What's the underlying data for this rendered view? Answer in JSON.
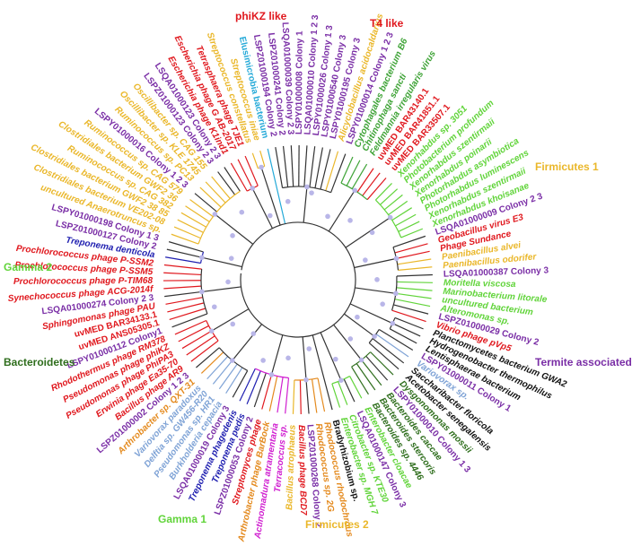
{
  "colors": {
    "black": "#111111",
    "red": "#e0181e",
    "purple": "#7a2ea6",
    "yellow": "#eab72a",
    "orange": "#e48a1e",
    "green": "#3ea336",
    "lgreen": "#61d43a",
    "blue": "#1f1fb0",
    "lblue": "#7fa3d6",
    "cyan": "#23a9d8",
    "magenta": "#d01ed0",
    "dgreen": "#2f6e1d"
  },
  "groups": [
    {
      "label": "phiKZ like",
      "color": "red"
    },
    {
      "label": "T4 like",
      "color": "red"
    },
    {
      "label": "Firmicutes 1",
      "color": "yellow"
    },
    {
      "label": "Gamma 2",
      "color": "lgreen"
    },
    {
      "label": "Bacteroidetes",
      "color": "dgreen"
    },
    {
      "label": "Termite associated",
      "color": "purple"
    },
    {
      "label": "Gamma 1",
      "color": "lgreen"
    },
    {
      "label": "Firmicutes 2",
      "color": "yellow"
    }
  ],
  "leaves": [
    {
      "text": "Treponema denticola",
      "color": "blue",
      "italic": true
    },
    {
      "text": "LSPZ01000127 Colony 2",
      "color": "purple",
      "italic": false
    },
    {
      "text": "LSPY01000198 Colony 1 3",
      "color": "purple",
      "italic": false
    },
    {
      "text": "uncultured Anaerotruncus sp.",
      "color": "yellow",
      "italic": true
    },
    {
      "text": "Clostridiales bacterium VE202-08",
      "color": "yellow",
      "italic": true
    },
    {
      "text": "Clostridiales bacterium GWF2 38 85",
      "color": "yellow",
      "italic": true
    },
    {
      "text": "Ruminococcus sp. CAG 382",
      "color": "yellow",
      "italic": true
    },
    {
      "text": "Clostridiales bacterium GWF2 36",
      "color": "yellow",
      "italic": true
    },
    {
      "text": "Ruminococcus sp. CAG 579",
      "color": "yellow",
      "italic": true
    },
    {
      "text": "LSPY01000016 Colony 1 2 3",
      "color": "purple",
      "italic": false
    },
    {
      "text": "Ruminococcus sp. PC13",
      "color": "yellow",
      "italic": true
    },
    {
      "text": "Oscillibacter sp. KLE 1745",
      "color": "yellow",
      "italic": true
    },
    {
      "text": "Oscillibacter sp. CAG 155",
      "color": "yellow",
      "italic": true
    },
    {
      "text": "LSPZ01000123 Colony 2 3",
      "color": "purple",
      "italic": false
    },
    {
      "text": "LSQA01000123 Colony 2 3",
      "color": "purple",
      "italic": false
    },
    {
      "text": "Escherichia phage K1ind1",
      "color": "red",
      "italic": true
    },
    {
      "text": "Escherichia phage G AB-2017",
      "color": "red",
      "italic": true
    },
    {
      "text": "Tetrasphaera phage TJE1",
      "color": "red",
      "italic": true
    },
    {
      "text": "Streptococcus constellatus",
      "color": "yellow",
      "italic": true
    },
    {
      "text": "Streptococcus iniae",
      "color": "yellow",
      "italic": true
    },
    {
      "text": "Elusimicrobia bacterium",
      "color": "cyan",
      "italic": false
    },
    {
      "text": "LSPZ01000194 Colony 2",
      "color": "purple",
      "italic": false
    },
    {
      "text": "LSPZ01000241 Colony 2",
      "color": "purple",
      "italic": false
    },
    {
      "text": "LSQA01000039 Colony 2 3",
      "color": "purple",
      "italic": false
    },
    {
      "text": "LSPY01000008 Colony 1",
      "color": "purple",
      "italic": false
    },
    {
      "text": "LSQA01000010 Colony 1 2 3",
      "color": "purple",
      "italic": false
    },
    {
      "text": "LSPY01000026 Colony 1 3",
      "color": "purple",
      "italic": false
    },
    {
      "text": "LSPY01000540 Colony 3",
      "color": "purple",
      "italic": false
    },
    {
      "text": "LSPY01000195 Colony 3",
      "color": "purple",
      "italic": false
    },
    {
      "text": "Alicyclobacillus acidocaldarius",
      "color": "yellow",
      "italic": true
    },
    {
      "text": "LSPY01000014 Colony 1 2 3",
      "color": "purple",
      "italic": false
    },
    {
      "text": "Cytophagales bacterium B6",
      "color": "green",
      "italic": true
    },
    {
      "text": "Chitinophaga sancti",
      "color": "green",
      "italic": true
    },
    {
      "text": "Feldmannia irregularis virus",
      "color": "green",
      "italic": true
    },
    {
      "text": "uvMED BAR43140.1",
      "color": "red",
      "italic": false
    },
    {
      "text": "uvMED BAR41851.1",
      "color": "red",
      "italic": false
    },
    {
      "text": "uvMED BAR33507.1",
      "color": "red",
      "italic": false
    },
    {
      "text": "Xenorhabdus sp. 3051",
      "color": "lgreen",
      "italic": true
    },
    {
      "text": "Photobacterium profundum",
      "color": "lgreen",
      "italic": true
    },
    {
      "text": "Xenorhabdus szentirmaii",
      "color": "lgreen",
      "italic": true
    },
    {
      "text": "Xenorhabdus poinarii",
      "color": "lgreen",
      "italic": true
    },
    {
      "text": "Photorhabdus asymbiotica",
      "color": "lgreen",
      "italic": true
    },
    {
      "text": "Photorhabdus luminescens",
      "color": "lgreen",
      "italic": true
    },
    {
      "text": "Xenorhabdus szentirmaii",
      "color": "lgreen",
      "italic": true
    },
    {
      "text": "Xenorhabdus khoisanae",
      "color": "lgreen",
      "italic": true
    },
    {
      "text": "LSQA01000009 Colony 2 3",
      "color": "purple",
      "italic": false
    },
    {
      "text": "Geobacillus virus E3",
      "color": "red",
      "italic": true
    },
    {
      "text": "Phage Sundance",
      "color": "red",
      "italic": true
    },
    {
      "text": "Paenibacillus alvei",
      "color": "yellow",
      "italic": true
    },
    {
      "text": "Paenibacillus odorifer",
      "color": "yellow",
      "italic": true
    },
    {
      "text": "LSQA01000387 Colony 3",
      "color": "purple",
      "italic": false
    },
    {
      "text": "Moritella viscosa",
      "color": "lgreen",
      "italic": true
    },
    {
      "text": "Marinobacterium litorale",
      "color": "lgreen",
      "italic": true
    },
    {
      "text": "uncultured bacterium",
      "color": "lgreen",
      "italic": true
    },
    {
      "text": "Alteromonas sp.",
      "color": "lgreen",
      "italic": true
    },
    {
      "text": "LSPZ01000029 Colony 2",
      "color": "purple",
      "italic": false
    },
    {
      "text": "Vibrio phage pVp5",
      "color": "red",
      "italic": true
    },
    {
      "text": "Planctomycetes bacterium GWA2",
      "color": "black",
      "italic": true
    },
    {
      "text": "Hydrogenobacter thermophilus",
      "color": "black",
      "italic": true
    },
    {
      "text": "Lentisphaerae bacterium",
      "color": "black",
      "italic": true
    },
    {
      "text": "LSPY01000011 Colony 1",
      "color": "purple",
      "italic": false
    },
    {
      "text": "Variovorax sp.",
      "color": "lblue",
      "italic": true
    },
    {
      "text": "Saccharibacter floricola",
      "color": "black",
      "italic": true
    },
    {
      "text": "Acetobacter senegalensis",
      "color": "black",
      "italic": true
    },
    {
      "text": "Dysgonomonas mossii",
      "color": "dgreen",
      "italic": true
    },
    {
      "text": "LSPY01000010 Colony 1 3",
      "color": "purple",
      "italic": false
    },
    {
      "text": "Bacteroides caccae",
      "color": "dgreen",
      "italic": true
    },
    {
      "text": "Bacteroides stercoris",
      "color": "dgreen",
      "italic": true
    },
    {
      "text": "Bacteroides sp. 4446",
      "color": "dgreen",
      "italic": true
    },
    {
      "text": "Enterobacter cloacae",
      "color": "lgreen",
      "italic": true
    },
    {
      "text": "LSQA01000147 Colony 3",
      "color": "purple",
      "italic": false
    },
    {
      "text": "Citrobacter sp. KTE30",
      "color": "lgreen",
      "italic": true
    },
    {
      "text": "Enterobacter sp. MGH 7",
      "color": "lgreen",
      "italic": true
    },
    {
      "text": "Bradyrhizobium sp.",
      "color": "black",
      "italic": false
    },
    {
      "text": "Rhodococcus rhodochrous",
      "color": "orange",
      "italic": true
    },
    {
      "text": "Rhodococcus sp. 2G",
      "color": "orange",
      "italic": true
    },
    {
      "text": "LSPZ01000268 Colony 2",
      "color": "purple",
      "italic": false
    },
    {
      "text": "Bacillus phage BCD7",
      "color": "red",
      "italic": true
    },
    {
      "text": "Bacillus atrophaeus",
      "color": "yellow",
      "italic": true
    },
    {
      "text": "Terracoccus sp.",
      "color": "magenta",
      "italic": true
    },
    {
      "text": "Actinomadura atramentaria",
      "color": "magenta",
      "italic": true
    },
    {
      "text": "Arthrobacter phage BarBock",
      "color": "orange",
      "italic": true
    },
    {
      "text": "Streptomyces phage",
      "color": "red",
      "italic": true
    },
    {
      "text": "LSPZ01000053 Colony 2",
      "color": "purple",
      "italic": false
    },
    {
      "text": "Treponema pedis",
      "color": "blue",
      "italic": true
    },
    {
      "text": "Treponema phagedenis",
      "color": "blue",
      "italic": true
    },
    {
      "text": "LSQA01000019 Colony 3",
      "color": "purple",
      "italic": false
    },
    {
      "text": "Burkholderia cepacia",
      "color": "lblue",
      "italic": true
    },
    {
      "text": "Pseudomonas sp. HR1",
      "color": "lblue",
      "italic": true
    },
    {
      "text": "Delftia sp. GW456-R20",
      "color": "lblue",
      "italic": true
    },
    {
      "text": "Variovorax paradoxus",
      "color": "lblue",
      "italic": true
    },
    {
      "text": "Arthrobacter sp. QXT-31",
      "color": "orange",
      "italic": true
    },
    {
      "text": "LSPZ01000002 Colony 1 2 3",
      "color": "purple",
      "italic": false
    },
    {
      "text": "Bacillus phage AR9",
      "color": "red",
      "italic": true
    },
    {
      "text": "Erwinia phage Ea35-70",
      "color": "red",
      "italic": true
    },
    {
      "text": "Pseudomonas phage PhiPA3",
      "color": "red",
      "italic": true
    },
    {
      "text": "Pseudomonas phage phiKZ",
      "color": "red",
      "italic": true
    },
    {
      "text": "Rhodothermus phage RM378",
      "color": "red",
      "italic": true
    },
    {
      "text": "LSPY01000112 Colony1",
      "color": "purple",
      "italic": false
    },
    {
      "text": "uvMED ANS05305.1",
      "color": "red",
      "italic": false
    },
    {
      "text": "uvMED BAR34133.1",
      "color": "red",
      "italic": false
    },
    {
      "text": "Sphingomonas phage PAU",
      "color": "red",
      "italic": true
    },
    {
      "text": "LSQA01000274 Colony 2 3",
      "color": "purple",
      "italic": false
    },
    {
      "text": "Synechococcus phage ACG-2014f",
      "color": "red",
      "italic": true
    },
    {
      "text": "Prochlorococcus phage P-TIM68",
      "color": "red",
      "italic": true
    },
    {
      "text": "Prochlorococcus phage P-SSM5",
      "color": "red",
      "italic": true
    },
    {
      "text": "Prochlorococcus phage P-SSM2",
      "color": "red",
      "italic": true
    }
  ]
}
